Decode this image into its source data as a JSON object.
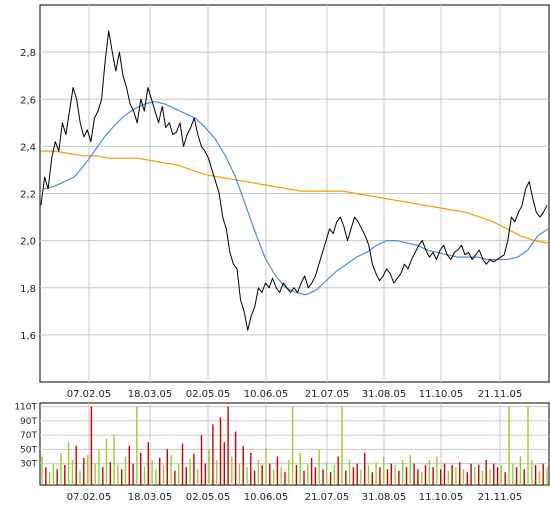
{
  "colors": {
    "price": "#000000",
    "ma_short": "#4a90d9",
    "ma_long": "#f0a000",
    "grid": "#c8c8c8",
    "axis": "#000000",
    "vol_up": "#99cc33",
    "vol_down": "#cc0000"
  },
  "chart_data": [
    {
      "type": "line",
      "title": "",
      "xlabel": "",
      "ylabel": "",
      "x_tick_labels": [
        "07.02.05",
        "18.03.05",
        "02.05.05",
        "10.06.05",
        "21.07.05",
        "31.08.05",
        "11.10.05",
        "21.11.05"
      ],
      "y_ticks": [
        "1,6",
        "1,8",
        "2,0",
        "2,2",
        "2,4",
        "2,6",
        "2,8"
      ],
      "ylim": [
        1.4,
        3.0
      ],
      "grid": true,
      "series": [
        {
          "key": "price",
          "style": "black line",
          "values": [
            2.15,
            2.27,
            2.22,
            2.35,
            2.42,
            2.38,
            2.5,
            2.45,
            2.55,
            2.65,
            2.6,
            2.5,
            2.44,
            2.47,
            2.42,
            2.52,
            2.55,
            2.6,
            2.76,
            2.89,
            2.8,
            2.72,
            2.8,
            2.7,
            2.65,
            2.58,
            2.55,
            2.5,
            2.6,
            2.55,
            2.65,
            2.6,
            2.55,
            2.5,
            2.57,
            2.48,
            2.5,
            2.45,
            2.46,
            2.5,
            2.4,
            2.45,
            2.48,
            2.52,
            2.45,
            2.4,
            2.38,
            2.35,
            2.3,
            2.25,
            2.2,
            2.1,
            2.05,
            1.95,
            1.9,
            1.88,
            1.75,
            1.7,
            1.62,
            1.68,
            1.72,
            1.8,
            1.78,
            1.82,
            1.8,
            1.84,
            1.8,
            1.78,
            1.82,
            1.8,
            1.78,
            1.8,
            1.78,
            1.82,
            1.85,
            1.8,
            1.82,
            1.85,
            1.9,
            1.95,
            2.0,
            2.05,
            2.03,
            2.08,
            2.1,
            2.06,
            2.0,
            2.05,
            2.1,
            2.08,
            2.05,
            2.02,
            1.98,
            1.9,
            1.86,
            1.83,
            1.85,
            1.88,
            1.86,
            1.82,
            1.84,
            1.86,
            1.9,
            1.88,
            1.92,
            1.95,
            1.98,
            2.0,
            1.96,
            1.93,
            1.95,
            1.92,
            1.96,
            1.98,
            1.94,
            1.92,
            1.95,
            1.96,
            1.98,
            1.94,
            1.95,
            1.92,
            1.94,
            1.96,
            1.92,
            1.9,
            1.92,
            1.91,
            1.92,
            1.93,
            1.94,
            2.0,
            2.1,
            2.08,
            2.12,
            2.15,
            2.22,
            2.25,
            2.18,
            2.12,
            2.1,
            2.12,
            2.15
          ]
        },
        {
          "key": "ma_short",
          "style": "blue moving average",
          "values": [
            2.22,
            2.23,
            2.25,
            2.27,
            2.32,
            2.38,
            2.44,
            2.49,
            2.53,
            2.56,
            2.58,
            2.59,
            2.58,
            2.56,
            2.54,
            2.52,
            2.48,
            2.43,
            2.36,
            2.27,
            2.15,
            2.03,
            1.92,
            1.85,
            1.8,
            1.78,
            1.77,
            1.79,
            1.83,
            1.87,
            1.9,
            1.93,
            1.95,
            1.98,
            2.0,
            2.0,
            1.99,
            1.98,
            1.96,
            1.95,
            1.94,
            1.93,
            1.93,
            1.93,
            1.92,
            1.92,
            1.92,
            1.93,
            1.96,
            2.02,
            2.05
          ]
        },
        {
          "key": "ma_long",
          "style": "orange moving average",
          "values": [
            2.38,
            2.38,
            2.37,
            2.36,
            2.36,
            2.35,
            2.35,
            2.35,
            2.34,
            2.33,
            2.32,
            2.3,
            2.28,
            2.27,
            2.26,
            2.25,
            2.24,
            2.23,
            2.22,
            2.21,
            2.21,
            2.21,
            2.21,
            2.2,
            2.19,
            2.18,
            2.17,
            2.16,
            2.15,
            2.14,
            2.13,
            2.12,
            2.1,
            2.08,
            2.05,
            2.02,
            2.0,
            1.99
          ]
        }
      ]
    },
    {
      "type": "bar",
      "title": "",
      "y_ticks": [
        "30T",
        "50T",
        "70T",
        "90T",
        "110T"
      ],
      "ylim": [
        0,
        115
      ],
      "x_tick_labels": [
        "07.02.05",
        "18.03.05",
        "02.05.05",
        "10.06.05",
        "21.07.05",
        "31.08.05",
        "11.10.05",
        "21.11.05"
      ],
      "values": [
        40,
        25,
        18,
        30,
        22,
        45,
        28,
        60,
        35,
        55,
        20,
        38,
        42,
        110,
        30,
        50,
        25,
        65,
        32,
        70,
        28,
        22,
        40,
        55,
        30,
        110,
        45,
        26,
        60,
        35,
        22,
        38,
        28,
        50,
        42,
        20,
        30,
        58,
        25,
        36,
        44,
        22,
        70,
        30,
        50,
        85,
        35,
        95,
        60,
        110,
        40,
        75,
        30,
        55,
        25,
        45,
        20,
        35,
        28,
        52,
        30,
        22,
        40,
        25,
        18,
        35,
        110,
        28,
        45,
        20,
        30,
        38,
        25,
        50,
        22,
        32,
        18,
        28,
        40,
        110,
        20,
        35,
        25,
        30,
        22,
        45,
        28,
        18,
        32,
        25,
        40,
        22,
        30,
        28,
        20,
        35,
        25,
        42,
        30,
        22,
        18,
        28,
        35,
        25,
        40,
        22,
        30,
        20,
        28,
        25,
        32,
        22,
        18,
        30,
        25,
        28,
        20,
        35,
        22,
        30,
        25,
        28,
        18,
        110,
        30,
        25,
        40,
        22,
        110,
        35,
        28,
        20,
        30,
        25
      ],
      "up": [
        1,
        0,
        1,
        1,
        0,
        1,
        0,
        1,
        1,
        0,
        1,
        0,
        1,
        0,
        1,
        1,
        0,
        1,
        0,
        1,
        1,
        0,
        1,
        0,
        0,
        1,
        0,
        1,
        0,
        1,
        1,
        0,
        1,
        0,
        1,
        0,
        1,
        0,
        0,
        1,
        0,
        1,
        0,
        0,
        1,
        0,
        1,
        0,
        0,
        0,
        1,
        0,
        1,
        0,
        1,
        0,
        0,
        1,
        0,
        1,
        0,
        1,
        0,
        1,
        0,
        1,
        1,
        0,
        1,
        0,
        1,
        0,
        0,
        1,
        0,
        1,
        0,
        1,
        0,
        1,
        0,
        1,
        0,
        0,
        1,
        0,
        1,
        0,
        1,
        0,
        1,
        0,
        0,
        1,
        0,
        1,
        0,
        1,
        0,
        0,
        1,
        0,
        1,
        0,
        1,
        0,
        0,
        1,
        0,
        1,
        0,
        1,
        0,
        0,
        1,
        0,
        1,
        0,
        1,
        0,
        0,
        1,
        0,
        1,
        1,
        0,
        1,
        0,
        1,
        1,
        0,
        1,
        0,
        1
      ]
    }
  ]
}
